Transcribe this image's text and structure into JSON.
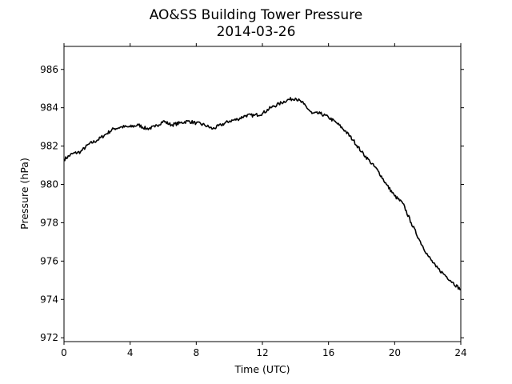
{
  "chart_data": {
    "type": "line",
    "title": "AO&SS Building Tower Pressure",
    "subtitle": "2014-03-26",
    "xlabel": "Time (UTC)",
    "ylabel": "Pressure (hPa)",
    "xlim": [
      0,
      24
    ],
    "ylim": [
      971.8,
      987.2
    ],
    "xticks": [
      0,
      4,
      8,
      12,
      16,
      20,
      24
    ],
    "yticks": [
      972,
      974,
      976,
      978,
      980,
      982,
      984,
      986
    ],
    "grid": false,
    "line_color": "#000000",
    "series": [
      {
        "x": [
          0,
          0.5,
          1,
          1.5,
          2,
          2.5,
          3,
          3.5,
          4,
          4.5,
          5,
          5.5,
          6,
          6.5,
          7,
          7.5,
          8,
          8.5,
          9,
          9.5,
          10,
          10.5,
          11,
          11.5,
          12,
          12.5,
          13,
          13.5,
          14,
          14.5,
          15,
          15.5,
          16,
          16.5,
          17,
          17.5,
          18,
          18.5,
          19,
          19.5,
          20,
          20.5,
          21,
          21.5,
          22,
          22.5,
          23,
          23.5,
          24
        ],
        "values": [
          981.3,
          981.6,
          981.7,
          982.1,
          982.3,
          982.6,
          982.9,
          983.0,
          983.0,
          983.1,
          982.9,
          983.0,
          983.3,
          983.1,
          983.2,
          983.3,
          983.2,
          983.1,
          982.9,
          983.1,
          983.3,
          983.4,
          983.6,
          983.6,
          983.7,
          984.0,
          984.2,
          984.4,
          984.5,
          984.2,
          983.7,
          983.7,
          983.5,
          983.2,
          982.8,
          982.3,
          981.7,
          981.2,
          980.7,
          980.0,
          979.4,
          979.0,
          978.0,
          977.1,
          976.3,
          975.7,
          975.3,
          974.9,
          974.5
        ]
      }
    ]
  }
}
